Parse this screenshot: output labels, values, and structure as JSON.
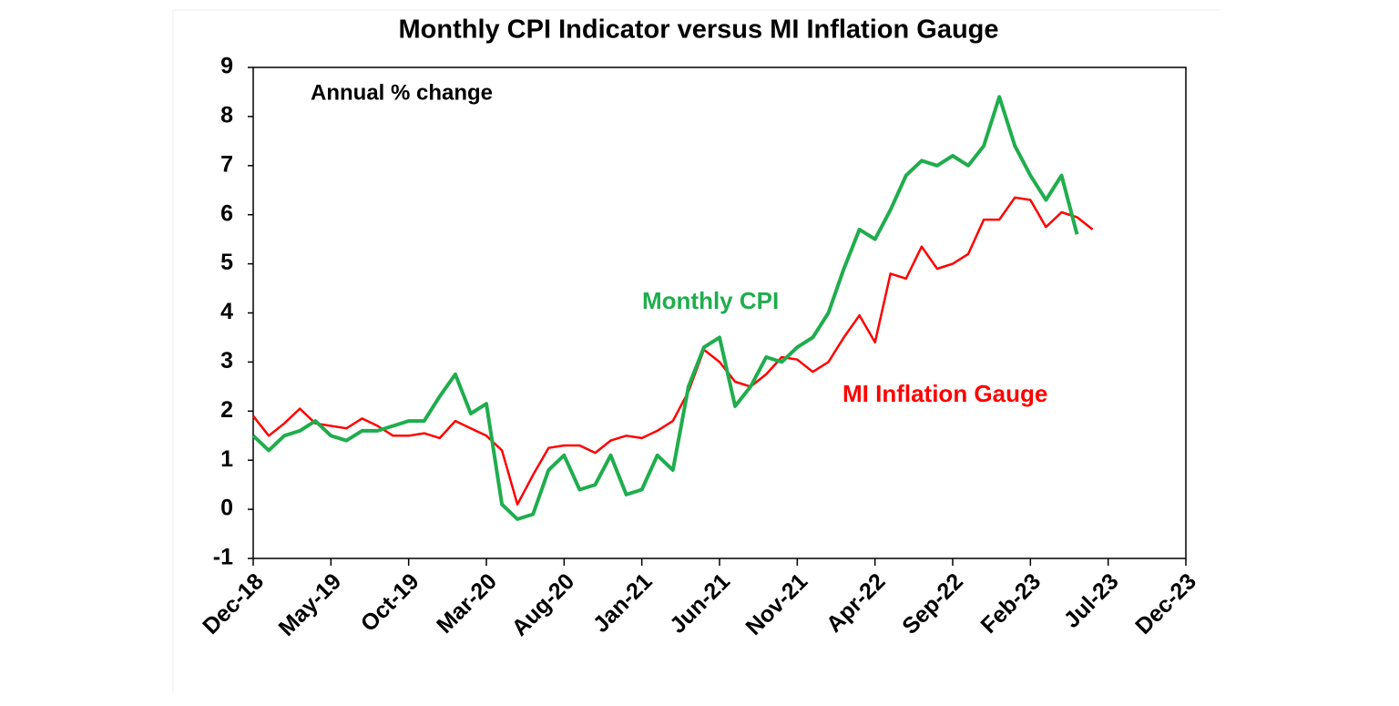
{
  "chart_data": {
    "type": "line",
    "title": "Monthly CPI Indicator versus MI Inflation Gauge",
    "annotation": "Annual % change",
    "categories": [
      "Dec-18",
      null,
      null,
      null,
      null,
      "May-19",
      null,
      null,
      null,
      null,
      "Oct-19",
      null,
      null,
      null,
      null,
      "Mar-20",
      null,
      null,
      null,
      null,
      "Aug-20",
      null,
      null,
      null,
      null,
      "Jan-21",
      null,
      null,
      null,
      null,
      "Jun-21",
      null,
      null,
      null,
      null,
      "Nov-21",
      null,
      null,
      null,
      null,
      "Apr-22",
      null,
      null,
      null,
      null,
      "Sep-22",
      null,
      null,
      null,
      null,
      "Feb-23",
      null,
      null,
      null,
      null,
      "Jul-23",
      null,
      null,
      null,
      null,
      "Dec-23"
    ],
    "series": [
      {
        "name": "Monthly CPI",
        "color": "#1fad4d",
        "values": [
          1.5,
          1.2,
          1.5,
          1.6,
          1.8,
          1.5,
          1.4,
          1.6,
          1.6,
          1.7,
          1.8,
          1.8,
          2.3,
          2.75,
          1.95,
          2.15,
          0.1,
          -0.2,
          -0.1,
          0.8,
          1.1,
          0.4,
          0.5,
          1.1,
          0.3,
          0.4,
          1.1,
          0.8,
          2.5,
          3.3,
          3.5,
          2.1,
          2.5,
          3.1,
          3.0,
          3.3,
          3.5,
          4.0,
          4.9,
          5.7,
          5.5,
          6.1,
          6.8,
          7.1,
          7.0,
          7.2,
          7.0,
          7.4,
          8.4,
          7.4,
          6.8,
          6.3,
          6.8,
          5.6,
          null,
          null,
          null,
          null,
          null,
          null,
          null
        ]
      },
      {
        "name": "MI Inflation Gauge",
        "color": "#ff0000",
        "values": [
          1.9,
          1.5,
          1.75,
          2.05,
          1.75,
          1.7,
          1.65,
          1.85,
          1.7,
          1.5,
          1.5,
          1.55,
          1.45,
          1.8,
          1.65,
          1.5,
          1.2,
          0.1,
          0.7,
          1.25,
          1.3,
          1.3,
          1.15,
          1.4,
          1.5,
          1.45,
          1.6,
          1.8,
          2.4,
          3.25,
          3.0,
          2.6,
          2.5,
          2.75,
          3.1,
          3.05,
          2.8,
          3.0,
          3.5,
          3.95,
          3.4,
          4.8,
          4.7,
          5.35,
          4.9,
          5.0,
          5.2,
          5.9,
          5.9,
          6.35,
          6.3,
          5.75,
          6.05,
          5.95,
          5.7,
          null,
          null,
          null,
          null,
          null,
          null
        ]
      }
    ],
    "ylim": [
      -1,
      9
    ],
    "yticks": [
      -1,
      0,
      1,
      2,
      3,
      4,
      5,
      6,
      7,
      8,
      9
    ],
    "grid": false
  }
}
